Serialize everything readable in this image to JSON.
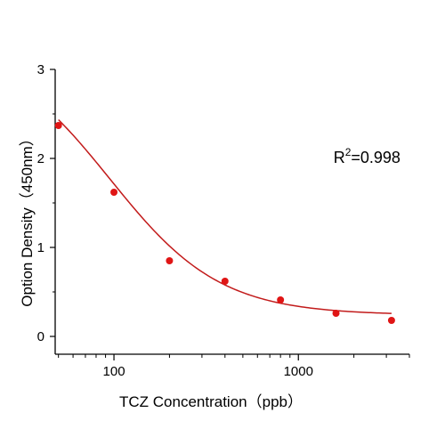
{
  "chart_data": {
    "type": "scatter",
    "x_scale": "log",
    "xlabel": "TCZ Concentration（ppb）",
    "ylabel": "Option Density（450nm）",
    "xlim": [
      48,
      4000
    ],
    "ylim": [
      -0.2,
      3.0
    ],
    "x_major_ticks": [
      100,
      1000
    ],
    "x_tick_labels": [
      "100",
      "1000"
    ],
    "y_ticks": [
      0,
      1,
      2,
      3
    ],
    "y_tick_labels": [
      "0",
      "1",
      "2",
      "3"
    ],
    "grid": false,
    "legend": "none",
    "annotation": {
      "prefix": "R",
      "superscript": "2",
      "suffix": "=0.998",
      "x": 1550,
      "y": 1.95
    },
    "series": [
      {
        "points": [
          {
            "x": 50,
            "y": 2.37
          },
          {
            "x": 100,
            "y": 1.62
          },
          {
            "x": 200,
            "y": 0.85
          },
          {
            "x": 400,
            "y": 0.62
          },
          {
            "x": 800,
            "y": 0.41
          },
          {
            "x": 1600,
            "y": 0.26
          },
          {
            "x": 3200,
            "y": 0.18
          }
        ],
        "color": "#e01515",
        "fit": {
          "model": "4PL",
          "top": 3.3,
          "bottom": 0.24,
          "ec50": 95,
          "hill": 1.45,
          "color": "#c21b1b"
        }
      }
    ]
  }
}
